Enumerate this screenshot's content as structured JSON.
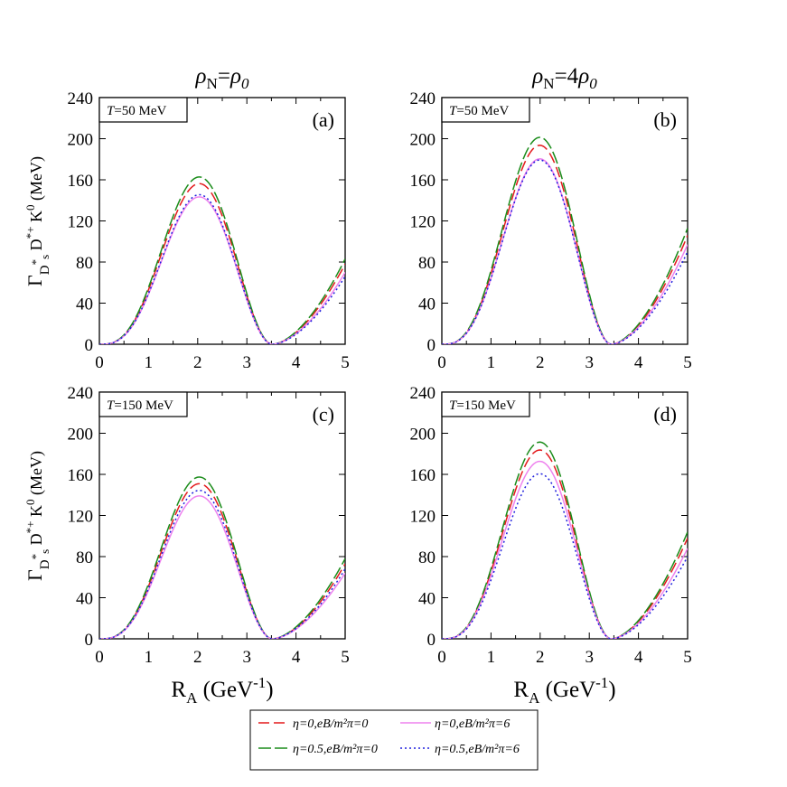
{
  "columns": [
    {
      "pre": "ρ",
      "sub": "N",
      "eq": "=",
      "coef": "",
      "post": "ρ",
      "post_sub": "0"
    },
    {
      "pre": "ρ",
      "sub": "N",
      "eq": "=",
      "coef": "4",
      "post": "ρ",
      "post_sub": "0"
    }
  ],
  "ylabel": {
    "gamma": "Γ",
    "sub_d": "D",
    "sub_star": "*",
    "sub_s": "s",
    "mid": " D",
    "mid_sup": "*+",
    "tail": " K",
    "tail_sup": "0",
    "unit": " (MeV)"
  },
  "xlabel": {
    "main": "R",
    "sub": "A",
    "unit": " (GeV",
    "unit_sup": "-1",
    "close": ")"
  },
  "legend": [
    {
      "label": "η=0,eB/m²π=0",
      "color": "#e31a1c",
      "dash": "12,5"
    },
    {
      "label": "η=0,eB/m²π=6",
      "color": "#ee82ee",
      "dash": ""
    },
    {
      "label": "η=0.5,eB/m²π=0",
      "color": "#1a8c1a",
      "dash": "14,4"
    },
    {
      "label": "η=0.5,eB/m²π=6",
      "color": "#1f1fdd",
      "dash": "2,3"
    }
  ],
  "chart_data": [
    {
      "type": "line",
      "panel": "(a)",
      "tag": "T=50 MeV",
      "xlim": [
        0,
        5
      ],
      "ylim": [
        0,
        240
      ],
      "xticks": [
        0,
        1,
        2,
        3,
        4,
        5
      ],
      "yticks": [
        0,
        40,
        80,
        120,
        160,
        200,
        240
      ],
      "peak_x": 1.75,
      "zero_x": 3.52,
      "series": [
        {
          "name": "η=0,eB/m²π=0",
          "peak": 145,
          "end": 78
        },
        {
          "name": "η=0.5,eB/m²π=0",
          "peak": 151,
          "end": 83
        },
        {
          "name": "η=0,eB/m²π=6",
          "peak": 133,
          "end": 70
        },
        {
          "name": "η=0.5,eB/m²π=6",
          "peak": 135,
          "end": 66
        }
      ]
    },
    {
      "type": "line",
      "panel": "(b)",
      "tag": "T=50 MeV",
      "xlim": [
        0,
        5
      ],
      "ylim": [
        0,
        240
      ],
      "xticks": [
        0,
        1,
        2,
        3,
        4,
        5
      ],
      "yticks": [
        0,
        40,
        80,
        120,
        160,
        200,
        240
      ],
      "peak_x": 1.68,
      "zero_x": 3.45,
      "series": [
        {
          "name": "η=0,eB/m²π=0",
          "peak": 176,
          "end": 106
        },
        {
          "name": "η=0.5,eB/m²π=0",
          "peak": 183,
          "end": 113
        },
        {
          "name": "η=0,eB/m²π=6",
          "peak": 164,
          "end": 97
        },
        {
          "name": "η=0.5,eB/m²π=6",
          "peak": 163,
          "end": 90
        }
      ]
    },
    {
      "type": "line",
      "panel": "(c)",
      "tag": "T=150 MeV",
      "xlim": [
        0,
        5
      ],
      "ylim": [
        0,
        240
      ],
      "xticks": [
        0,
        1,
        2,
        3,
        4,
        5
      ],
      "yticks": [
        0,
        40,
        80,
        120,
        160,
        200,
        240
      ],
      "peak_x": 1.75,
      "zero_x": 3.52,
      "series": [
        {
          "name": "η=0,eB/m²π=0",
          "peak": 140,
          "end": 73
        },
        {
          "name": "η=0.5,eB/m²π=0",
          "peak": 146,
          "end": 78
        },
        {
          "name": "η=0,eB/m²π=6",
          "peak": 129,
          "end": 64
        },
        {
          "name": "η=0.5,eB/m²π=6",
          "peak": 134,
          "end": 68
        }
      ]
    },
    {
      "type": "line",
      "panel": "(d)",
      "tag": "T=150 MeV",
      "xlim": [
        0,
        5
      ],
      "ylim": [
        0,
        240
      ],
      "xticks": [
        0,
        1,
        2,
        3,
        4,
        5
      ],
      "yticks": [
        0,
        40,
        80,
        120,
        160,
        200,
        240
      ],
      "peak_x": 1.68,
      "zero_x": 3.45,
      "series": [
        {
          "name": "η=0,eB/m²π=0",
          "peak": 167,
          "end": 98
        },
        {
          "name": "η=0.5,eB/m²π=0",
          "peak": 174,
          "end": 104
        },
        {
          "name": "η=0,eB/m²π=6",
          "peak": 157,
          "end": 88
        },
        {
          "name": "η=0.5,eB/m²π=6",
          "peak": 146,
          "end": 80
        }
      ]
    }
  ]
}
